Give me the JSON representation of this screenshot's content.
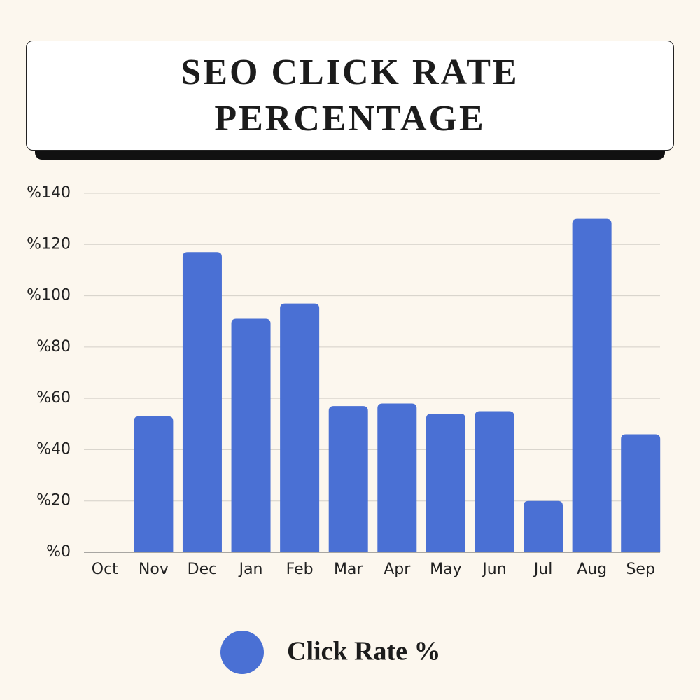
{
  "chart_data": {
    "type": "bar",
    "title": "SEO CLICK RATE PERCENTAGE",
    "categories": [
      "Oct",
      "Nov",
      "Dec",
      "Jan",
      "Feb",
      "Mar",
      "Apr",
      "May",
      "Jun",
      "Jul",
      "Aug",
      "Sep"
    ],
    "series": [
      {
        "name": "Click Rate %",
        "color": "#4a70d4",
        "values": [
          0,
          53,
          117,
          91,
          97,
          57,
          58,
          54,
          55,
          20,
          130,
          46
        ]
      }
    ],
    "ylim": [
      0,
      140
    ],
    "yticks": [
      {
        "value": 0,
        "label": "%0"
      },
      {
        "value": 20,
        "label": "%20"
      },
      {
        "value": 40,
        "label": "%40"
      },
      {
        "value": 60,
        "label": "%60"
      },
      {
        "value": 80,
        "label": "%80"
      },
      {
        "value": 100,
        "label": "%100"
      },
      {
        "value": 120,
        "label": "%120"
      },
      {
        "value": 140,
        "label": "%140"
      }
    ],
    "grid": true,
    "legend": "bottom"
  }
}
